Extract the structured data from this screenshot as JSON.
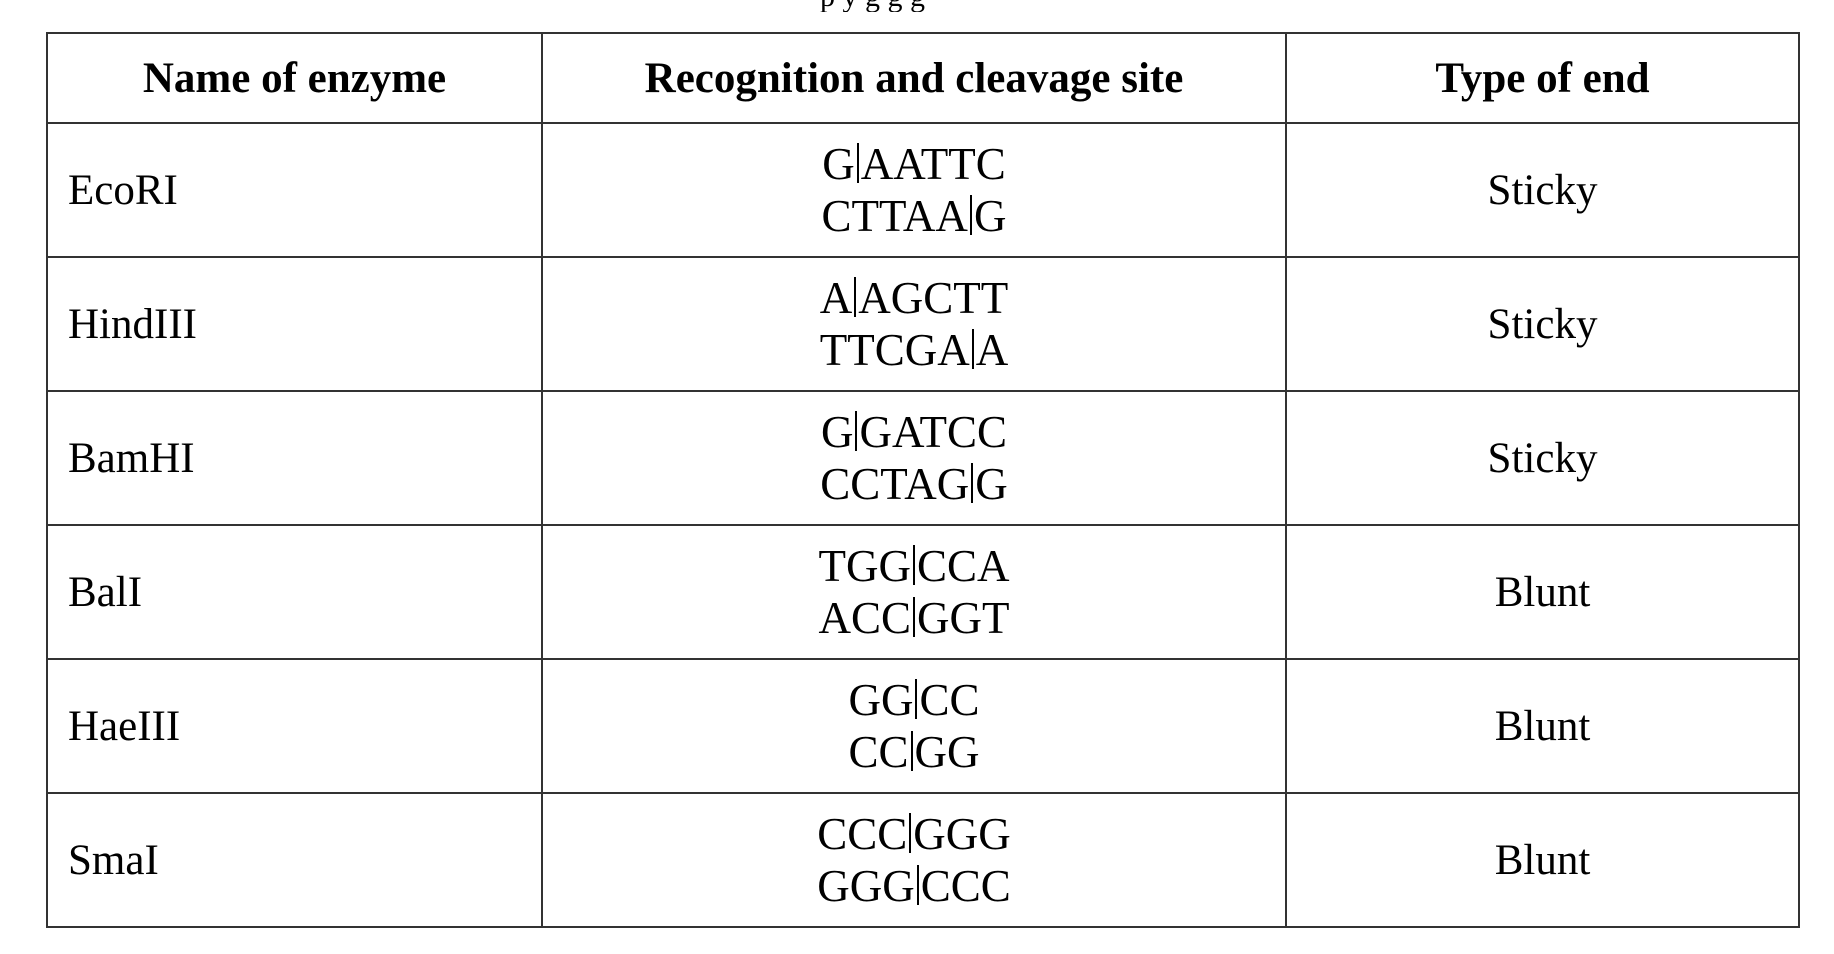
{
  "top_text": "p                                          y    g  g          g",
  "table": {
    "headers": [
      "Name of enzyme",
      "Recognition and cleavage site",
      "Type of end"
    ],
    "rows": [
      {
        "name": "EcoRI",
        "top": [
          "G",
          "AATTC"
        ],
        "bottom": [
          "CTTAA",
          "G"
        ],
        "end": "Sticky"
      },
      {
        "name": "HindIII",
        "top": [
          "A",
          "AGCTT"
        ],
        "bottom": [
          "TTCGA",
          "A"
        ],
        "end": "Sticky"
      },
      {
        "name": "BamHI",
        "top": [
          "G",
          "GATCC"
        ],
        "bottom": [
          "CCTAG",
          "G"
        ],
        "end": "Sticky"
      },
      {
        "name": "BalI",
        "top": [
          "TGG",
          "CCA"
        ],
        "bottom": [
          "ACC",
          "GGT"
        ],
        "end": "Blunt"
      },
      {
        "name": "HaeIII",
        "top": [
          "GG",
          "CC"
        ],
        "bottom": [
          "CC",
          "GG"
        ],
        "end": "Blunt"
      },
      {
        "name": "SmaI",
        "top": [
          "CCC",
          "GGG"
        ],
        "bottom": [
          "GGG",
          "CCC"
        ],
        "end": "Blunt"
      }
    ]
  }
}
